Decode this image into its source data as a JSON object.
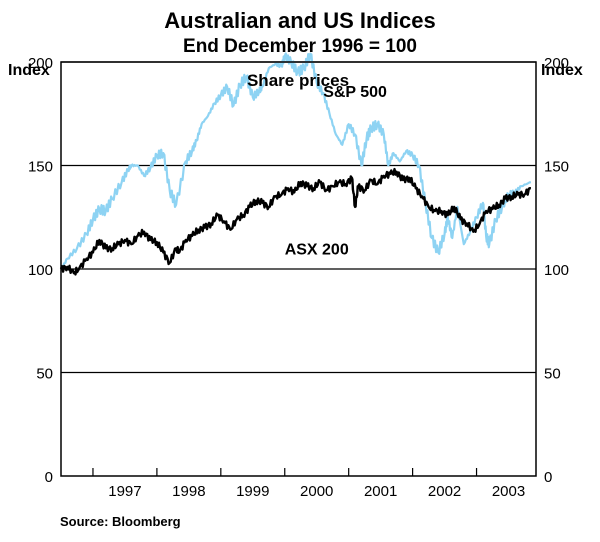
{
  "chart_data": {
    "type": "line",
    "title": "Australian and US Indices",
    "subtitle": "End December 1996 = 100",
    "panel_title": "Share prices",
    "ylabel_left": "Index",
    "ylabel_right": "Index",
    "ylim": [
      0,
      200
    ],
    "yticks": [
      0,
      50,
      100,
      150,
      200
    ],
    "xlim": [
      1996.5,
      2003.93
    ],
    "x_categories": [
      "1997",
      "1998",
      "1999",
      "2000",
      "2001",
      "2002",
      "2003"
    ],
    "grid": "horizontal",
    "series": [
      {
        "name": "S&P 500",
        "color": "#8ed3f3",
        "x": [
          1996.5,
          1996.6,
          1996.75,
          1996.9,
          1997.0,
          1997.1,
          1997.2,
          1997.3,
          1997.45,
          1997.55,
          1997.6,
          1997.7,
          1997.8,
          1997.9,
          1998.0,
          1998.1,
          1998.2,
          1998.3,
          1998.45,
          1998.55,
          1998.62,
          1998.7,
          1998.8,
          1998.9,
          1999.0,
          1999.1,
          1999.2,
          1999.3,
          1999.4,
          1999.5,
          1999.6,
          1999.65,
          1999.75,
          1999.85,
          1999.95,
          2000.0,
          2000.1,
          2000.2,
          2000.3,
          2000.4,
          2000.5,
          2000.6,
          2000.7,
          2000.8,
          2000.9,
          2001.0,
          2001.1,
          2001.2,
          2001.28,
          2001.35,
          2001.45,
          2001.55,
          2001.62,
          2001.7,
          2001.8,
          2001.9,
          2002.0,
          2002.1,
          2002.2,
          2002.3,
          2002.4,
          2002.5,
          2002.55,
          2002.62,
          2002.7,
          2002.8,
          2002.9,
          2003.0,
          2003.1,
          2003.15,
          2003.2,
          2003.3,
          2003.4,
          2003.5,
          2003.6,
          2003.7,
          2003.85
        ],
        "values": [
          100,
          105,
          110,
          117,
          124,
          129,
          128,
          134,
          142,
          148,
          150,
          150,
          145,
          149,
          155,
          156,
          138,
          131,
          152,
          157,
          162,
          170,
          174,
          180,
          184,
          188,
          179,
          189,
          193,
          183,
          186,
          188,
          197,
          199,
          198,
          203,
          200,
          195,
          197,
          204,
          190,
          185,
          175,
          165,
          160,
          170,
          165,
          150,
          163,
          168,
          170,
          165,
          150,
          156,
          152,
          157,
          155,
          150,
          132,
          115,
          108,
          117,
          125,
          115,
          130,
          112,
          118,
          125,
          132,
          116,
          112,
          124,
          130,
          136,
          137,
          140,
          142
        ]
      },
      {
        "name": "ASX 200",
        "color": "#000000",
        "x": [
          1996.5,
          1996.6,
          1996.7,
          1996.78,
          1996.9,
          1997.0,
          1997.1,
          1997.2,
          1997.3,
          1997.4,
          1997.5,
          1997.6,
          1997.7,
          1997.8,
          1997.9,
          1998.0,
          1998.1,
          1998.2,
          1998.3,
          1998.35,
          1998.45,
          1998.55,
          1998.65,
          1998.75,
          1998.85,
          1998.95,
          1999.05,
          1999.15,
          1999.25,
          1999.35,
          1999.45,
          1999.55,
          1999.65,
          1999.75,
          1999.85,
          1999.95,
          2000.05,
          2000.15,
          2000.25,
          2000.35,
          2000.45,
          2000.55,
          2000.65,
          2000.75,
          2000.85,
          2000.95,
          2001.05,
          2001.1,
          2001.15,
          2001.25,
          2001.35,
          2001.45,
          2001.55,
          2001.65,
          2001.75,
          2001.85,
          2001.95,
          2002.05,
          2002.15,
          2002.25,
          2002.35,
          2002.45,
          2002.55,
          2002.65,
          2002.75,
          2002.85,
          2002.95,
          2003.05,
          2003.15,
          2003.25,
          2003.35,
          2003.45,
          2003.55,
          2003.65,
          2003.75,
          2003.85
        ],
        "values": [
          100,
          101,
          98,
          100,
          105,
          108,
          114,
          110,
          110,
          112,
          114,
          112,
          116,
          118,
          114,
          113,
          108,
          103,
          110,
          108,
          114,
          116,
          119,
          120,
          122,
          126,
          123,
          119,
          124,
          126,
          130,
          133,
          132,
          130,
          135,
          136,
          139,
          137,
          142,
          140,
          139,
          142,
          138,
          140,
          142,
          141,
          144,
          130,
          140,
          138,
          143,
          141,
          145,
          146,
          147,
          143,
          144,
          139,
          135,
          130,
          128,
          128,
          126,
          130,
          124,
          122,
          118,
          122,
          128,
          129,
          131,
          134,
          135,
          136,
          136,
          139
        ]
      }
    ],
    "annotations": [
      {
        "text": "S&P 500",
        "x": 2001.1,
        "y": 183
      },
      {
        "text": "ASX 200",
        "x": 2000.5,
        "y": 107
      }
    ],
    "source": "Source: Bloomberg"
  }
}
